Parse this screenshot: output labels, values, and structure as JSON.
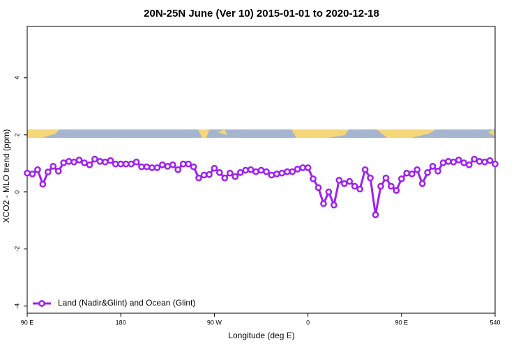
{
  "chart_data": {
    "type": "line",
    "title": "20N-25N June (Ver 10)   2015-01-01 to 2020-12-18",
    "x_label": "Longitude (deg E)",
    "y_label": "XCO2 - MLO trend (ppm)",
    "xlim": [
      90,
      540
    ],
    "ylim": [
      -4.25,
      5.8
    ],
    "xticks": [
      {
        "value": 90,
        "label": "90 E"
      },
      180,
      {
        "value": 270,
        "label": "90 W"
      },
      {
        "value": 360,
        "label": "0"
      },
      {
        "value": 450,
        "label": "90 E"
      },
      540
    ],
    "yticks": [
      -4,
      -2,
      0,
      2,
      4
    ],
    "legend": "bottom-left",
    "x": [
      90,
      95,
      100,
      105,
      110,
      115,
      120,
      125,
      130,
      135,
      140,
      145,
      150,
      155,
      160,
      165,
      170,
      175,
      180,
      185,
      190,
      195,
      200,
      205,
      210,
      215,
      220,
      225,
      230,
      235,
      240,
      245,
      250,
      255,
      260,
      265,
      270,
      275,
      280,
      285,
      290,
      295,
      300,
      305,
      310,
      315,
      320,
      325,
      330,
      335,
      340,
      345,
      350,
      355,
      360,
      365,
      370,
      375,
      380,
      385,
      390,
      395,
      400,
      405,
      410,
      415,
      420,
      425,
      430,
      435,
      440,
      445,
      450,
      455,
      460,
      465,
      470,
      475,
      480,
      485,
      490,
      495,
      500,
      505,
      510,
      515,
      520,
      525,
      530,
      535,
      540
    ],
    "series": [
      {
        "name": "Land (Nadir&Glint) and Ocean (Glint)",
        "color": "#a020f0",
        "values": [
          0.66,
          0.63,
          0.78,
          0.27,
          0.7,
          0.9,
          0.73,
          1.02,
          1.07,
          1.05,
          1.12,
          1.02,
          0.95,
          1.15,
          1.07,
          1.05,
          1.1,
          0.98,
          0.98,
          0.98,
          0.98,
          1.05,
          0.88,
          0.88,
          0.85,
          0.85,
          0.95,
          0.9,
          0.95,
          0.78,
          0.98,
          0.98,
          0.88,
          0.49,
          0.59,
          0.61,
          0.83,
          0.68,
          0.49,
          0.66,
          0.54,
          0.68,
          0.76,
          0.78,
          0.71,
          0.76,
          0.71,
          0.59,
          0.63,
          0.66,
          0.71,
          0.71,
          0.8,
          0.85,
          0.85,
          0.46,
          0.15,
          -0.41,
          0,
          -0.46,
          0.41,
          0.29,
          0.37,
          0.2,
          0.1,
          0.78,
          0.49,
          -0.8,
          0.2,
          0.49,
          0.2,
          0.05,
          0.46,
          0.66,
          0.63,
          0.78,
          0.29,
          0.68,
          0.9,
          0.73,
          1.02,
          1.07,
          1.05,
          1.12,
          1.02,
          0.95,
          1.15,
          1.07,
          1.05,
          1.1,
          0.98
        ]
      }
    ]
  }
}
